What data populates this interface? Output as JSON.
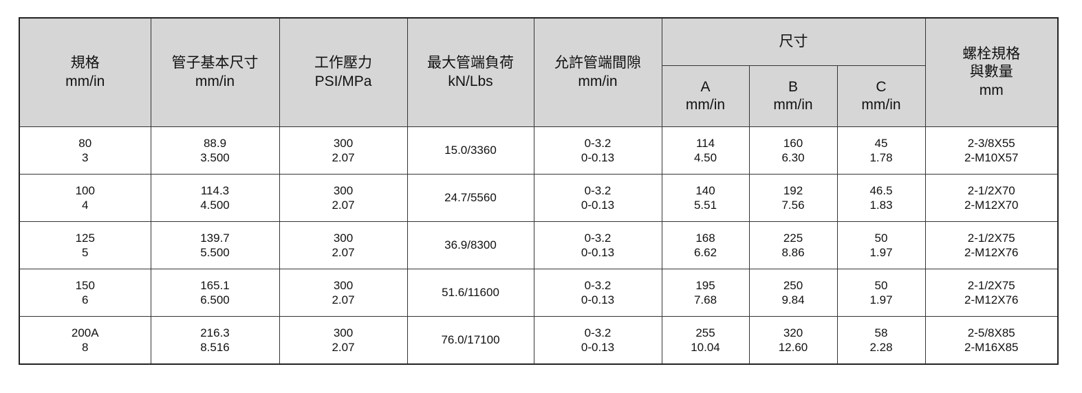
{
  "headers": {
    "spec": [
      "規格",
      "mm/in"
    ],
    "pipe_size": [
      "管子基本尺寸",
      "mm/in"
    ],
    "working_pressure": [
      "工作壓力",
      "PSI/MPa"
    ],
    "max_end_load": [
      "最大管端負荷",
      "kN/Lbs"
    ],
    "end_gap": [
      "允許管端間隙",
      "mm/in"
    ],
    "dimension_group": "尺寸",
    "dim_a": [
      "A",
      "mm/in"
    ],
    "dim_b": [
      "B",
      "mm/in"
    ],
    "dim_c": [
      "C",
      "mm/in"
    ],
    "bolt": [
      "螺栓規格",
      "與數量",
      "mm"
    ]
  },
  "rows": [
    {
      "spec": [
        "80",
        "3"
      ],
      "pipe": [
        "88.9",
        "3.500"
      ],
      "pressure": [
        "300",
        "2.07"
      ],
      "load": "15.0/3360",
      "gap": [
        "0-3.2",
        "0-0.13"
      ],
      "a": [
        "114",
        "4.50"
      ],
      "b": [
        "160",
        "6.30"
      ],
      "c": [
        "45",
        "1.78"
      ],
      "bolt": [
        "2-3/8X55",
        "2-M10X57"
      ]
    },
    {
      "spec": [
        "100",
        "4"
      ],
      "pipe": [
        "114.3",
        "4.500"
      ],
      "pressure": [
        "300",
        "2.07"
      ],
      "load": "24.7/5560",
      "gap": [
        "0-3.2",
        "0-0.13"
      ],
      "a": [
        "140",
        "5.51"
      ],
      "b": [
        "192",
        "7.56"
      ],
      "c": [
        "46.5",
        "1.83"
      ],
      "bolt": [
        "2-1/2X70",
        "2-M12X70"
      ]
    },
    {
      "spec": [
        "125",
        "5"
      ],
      "pipe": [
        "139.7",
        "5.500"
      ],
      "pressure": [
        "300",
        "2.07"
      ],
      "load": "36.9/8300",
      "gap": [
        "0-3.2",
        "0-0.13"
      ],
      "a": [
        "168",
        "6.62"
      ],
      "b": [
        "225",
        "8.86"
      ],
      "c": [
        "50",
        "1.97"
      ],
      "bolt": [
        "2-1/2X75",
        "2-M12X76"
      ]
    },
    {
      "spec": [
        "150",
        "6"
      ],
      "pipe": [
        "165.1",
        "6.500"
      ],
      "pressure": [
        "300",
        "2.07"
      ],
      "load": "51.6/11600",
      "gap": [
        "0-3.2",
        "0-0.13"
      ],
      "a": [
        "195",
        "7.68"
      ],
      "b": [
        "250",
        "9.84"
      ],
      "c": [
        "50",
        "1.97"
      ],
      "bolt": [
        "2-1/2X75",
        "2-M12X76"
      ]
    },
    {
      "spec": [
        "200A",
        "8"
      ],
      "pipe": [
        "216.3",
        "8.516"
      ],
      "pressure": [
        "300",
        "2.07"
      ],
      "load": "76.0/17100",
      "gap": [
        "0-3.2",
        "0-0.13"
      ],
      "a": [
        "255",
        "10.04"
      ],
      "b": [
        "320",
        "12.60"
      ],
      "c": [
        "58",
        "2.28"
      ],
      "bolt": [
        "2-5/8X85",
        "2-M16X85"
      ]
    }
  ]
}
